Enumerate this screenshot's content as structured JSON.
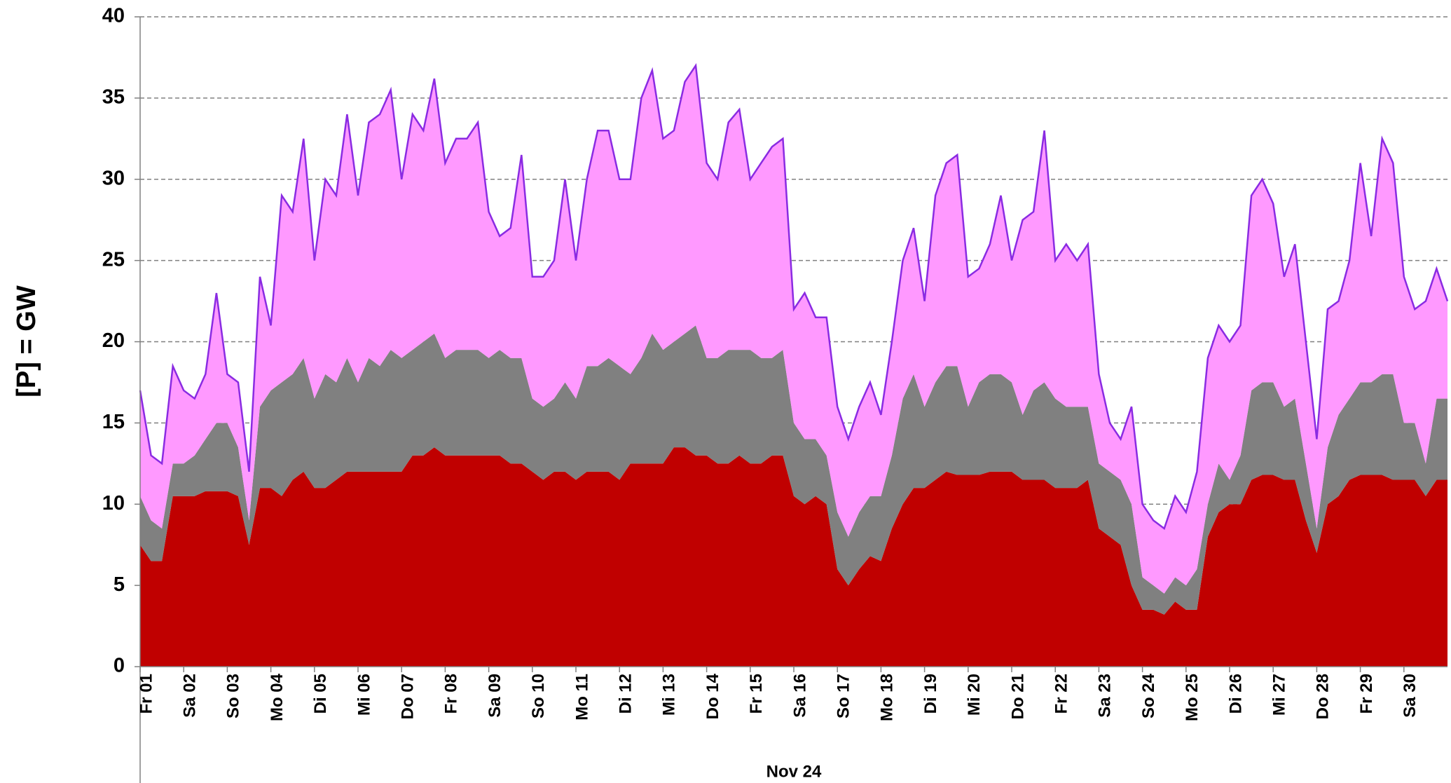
{
  "chart_data": {
    "type": "area",
    "stacked": true,
    "y_label": "[P] = GW",
    "x_group_label": "Nov 24",
    "xlim": [
      0,
      30
    ],
    "ylim": [
      0,
      40
    ],
    "yticks": [
      0,
      5,
      10,
      15,
      20,
      25,
      30,
      35,
      40
    ],
    "grid": true,
    "edge_color": "#8a2be2",
    "xticks": [
      {
        "value": 0,
        "label": "Fr 01"
      },
      {
        "value": 1,
        "label": "Sa 02"
      },
      {
        "value": 2,
        "label": "So 03"
      },
      {
        "value": 3,
        "label": "Mo 04"
      },
      {
        "value": 4,
        "label": "Di 05"
      },
      {
        "value": 5,
        "label": "Mi 06"
      },
      {
        "value": 6,
        "label": "Do 07"
      },
      {
        "value": 7,
        "label": "Fr 08"
      },
      {
        "value": 8,
        "label": "Sa 09"
      },
      {
        "value": 9,
        "label": "So 10"
      },
      {
        "value": 10,
        "label": "Mo 11"
      },
      {
        "value": 11,
        "label": "Di 12"
      },
      {
        "value": 12,
        "label": "Mi 13"
      },
      {
        "value": 13,
        "label": "Do 14"
      },
      {
        "value": 14,
        "label": "Fr 15"
      },
      {
        "value": 15,
        "label": "Sa 16"
      },
      {
        "value": 16,
        "label": "So 17"
      },
      {
        "value": 17,
        "label": "Mo 18"
      },
      {
        "value": 18,
        "label": "Di 19"
      },
      {
        "value": 19,
        "label": "Mi 20"
      },
      {
        "value": 20,
        "label": "Do 21"
      },
      {
        "value": 21,
        "label": "Fr 22"
      },
      {
        "value": 22,
        "label": "Sa 23"
      },
      {
        "value": 23,
        "label": "So 24"
      },
      {
        "value": 24,
        "label": "Mo 25"
      },
      {
        "value": 25,
        "label": "Di 26"
      },
      {
        "value": 26,
        "label": "Mi 27"
      },
      {
        "value": 27,
        "label": "Do 28"
      },
      {
        "value": 28,
        "label": "Fr 29"
      },
      {
        "value": 29,
        "label": "Sa 30"
      }
    ],
    "x": [
      0,
      0.25,
      0.5,
      0.75,
      1,
      1.25,
      1.5,
      1.75,
      2,
      2.25,
      2.5,
      2.75,
      3,
      3.25,
      3.5,
      3.75,
      4,
      4.25,
      4.5,
      4.75,
      5,
      5.25,
      5.5,
      5.75,
      6,
      6.25,
      6.5,
      6.75,
      7,
      7.25,
      7.5,
      7.75,
      8,
      8.25,
      8.5,
      8.75,
      9,
      9.25,
      9.5,
      9.75,
      10,
      10.25,
      10.5,
      10.75,
      11,
      11.25,
      11.5,
      11.75,
      12,
      12.25,
      12.5,
      12.75,
      13,
      13.25,
      13.5,
      13.75,
      14,
      14.25,
      14.5,
      14.75,
      15,
      15.25,
      15.5,
      15.75,
      16,
      16.25,
      16.5,
      16.75,
      17,
      17.25,
      17.5,
      17.75,
      18,
      18.25,
      18.5,
      18.75,
      19,
      19.25,
      19.5,
      19.75,
      20,
      20.25,
      20.5,
      20.75,
      21,
      21.25,
      21.5,
      21.75,
      22,
      22.25,
      22.5,
      22.75,
      23,
      23.25,
      23.5,
      23.75,
      24,
      24.25,
      24.5,
      24.75,
      25,
      25.25,
      25.5,
      25.75,
      26,
      26.25,
      26.5,
      26.75,
      27,
      27.25,
      27.5,
      27.75,
      28,
      28.25,
      28.5,
      28.75,
      29,
      29.25,
      29.5,
      29.75,
      30
    ],
    "series": [
      {
        "color": "#c00000",
        "values": [
          7.5,
          6.5,
          6.5,
          10.5,
          10.5,
          10.5,
          10.8,
          10.8,
          10.8,
          10.5,
          7.5,
          11,
          11,
          10.5,
          11.5,
          12,
          11,
          11,
          11.5,
          12,
          12,
          12,
          12,
          12,
          12,
          13,
          13,
          13.5,
          13,
          13,
          13,
          13,
          13,
          13,
          12.5,
          12.5,
          12,
          11.5,
          12,
          12,
          11.5,
          12,
          12,
          12,
          11.5,
          12.5,
          12.5,
          12.5,
          12.5,
          13.5,
          13.5,
          13,
          13,
          12.5,
          12.5,
          13,
          12.5,
          12.5,
          13,
          13,
          10.5,
          10,
          10.5,
          10,
          6,
          5,
          6,
          6.8,
          6.5,
          8.5,
          10,
          11,
          11,
          11.5,
          12,
          11.8,
          11.8,
          11.8,
          12,
          12,
          12,
          11.5,
          11.5,
          11.5,
          11,
          11,
          11,
          11.5,
          8.5,
          8,
          7.5,
          5,
          3.5,
          3.5,
          3.2,
          4,
          3.5,
          3.5,
          8,
          9.5,
          10,
          10,
          11.5,
          11.8,
          11.8,
          11.5,
          11.5,
          9,
          7,
          10,
          10.5,
          11.5,
          11.8,
          11.8,
          11.8,
          11.5,
          11.5,
          11.5,
          10.5,
          11.5,
          11.5
        ]
      },
      {
        "color": "#808080",
        "values": [
          3,
          2.5,
          2,
          2,
          2,
          2.5,
          3.2,
          4.2,
          4.2,
          3,
          1.5,
          5,
          6,
          7,
          6.5,
          7,
          5.5,
          7,
          6,
          7,
          5.5,
          7,
          6.5,
          7.5,
          7,
          6.5,
          7,
          7,
          6,
          6.5,
          6.5,
          6.5,
          6,
          6.5,
          6.5,
          6.5,
          4.5,
          4.5,
          4.5,
          5.5,
          5,
          6.5,
          6.5,
          7,
          7,
          5.5,
          6.5,
          8,
          7,
          6.5,
          7,
          8,
          6,
          6.5,
          7,
          6.5,
          7,
          6.5,
          6,
          6.5,
          4.5,
          4,
          3.5,
          3,
          3.5,
          3,
          3.5,
          3.7,
          4,
          4.5,
          6.5,
          7,
          5,
          6,
          6.5,
          6.7,
          4.2,
          5.7,
          6,
          6,
          5.5,
          4,
          5.5,
          6,
          5.5,
          5,
          5,
          4.5,
          4,
          4,
          4,
          5,
          2,
          1.5,
          1.3,
          1.5,
          1.5,
          2.5,
          2,
          3,
          1.5,
          3,
          5.5,
          5.7,
          5.7,
          4.5,
          5,
          3.5,
          1.5,
          3.5,
          5,
          5,
          5.7,
          5.7,
          6.2,
          6.5,
          3.5,
          3.5,
          2,
          5,
          5
        ]
      },
      {
        "color": "#ff99ff",
        "values": [
          6.5,
          4,
          4,
          6,
          4.5,
          3.5,
          4,
          8,
          3,
          4,
          3,
          8,
          4,
          11.5,
          10,
          13.5,
          8.5,
          12,
          11.5,
          15,
          11.5,
          14.5,
          15.5,
          16,
          11,
          14.5,
          13,
          15.7,
          12,
          13,
          13,
          14,
          9,
          7,
          8,
          12.5,
          7.5,
          8,
          8.5,
          12.5,
          8.5,
          11.5,
          14.5,
          14,
          11.5,
          12,
          16,
          16.2,
          13,
          13,
          15.5,
          16,
          12,
          11,
          14,
          14.8,
          10.5,
          12,
          13,
          13,
          7,
          9,
          7.5,
          8.5,
          6.5,
          6,
          6.5,
          7,
          5,
          7,
          8.5,
          9,
          6.5,
          11.5,
          12.5,
          13,
          8,
          7,
          8,
          11,
          7.5,
          12,
          11,
          15.5,
          8.5,
          10,
          9,
          10,
          5.5,
          3,
          2.5,
          6,
          4.5,
          4,
          4,
          5,
          4.5,
          6,
          9,
          8.5,
          8.5,
          8,
          12,
          12.5,
          11,
          8,
          9.5,
          7.5,
          5.5,
          8.5,
          7,
          8.5,
          13.5,
          9,
          14.5,
          13,
          9,
          7,
          10,
          8,
          6
        ]
      }
    ]
  }
}
